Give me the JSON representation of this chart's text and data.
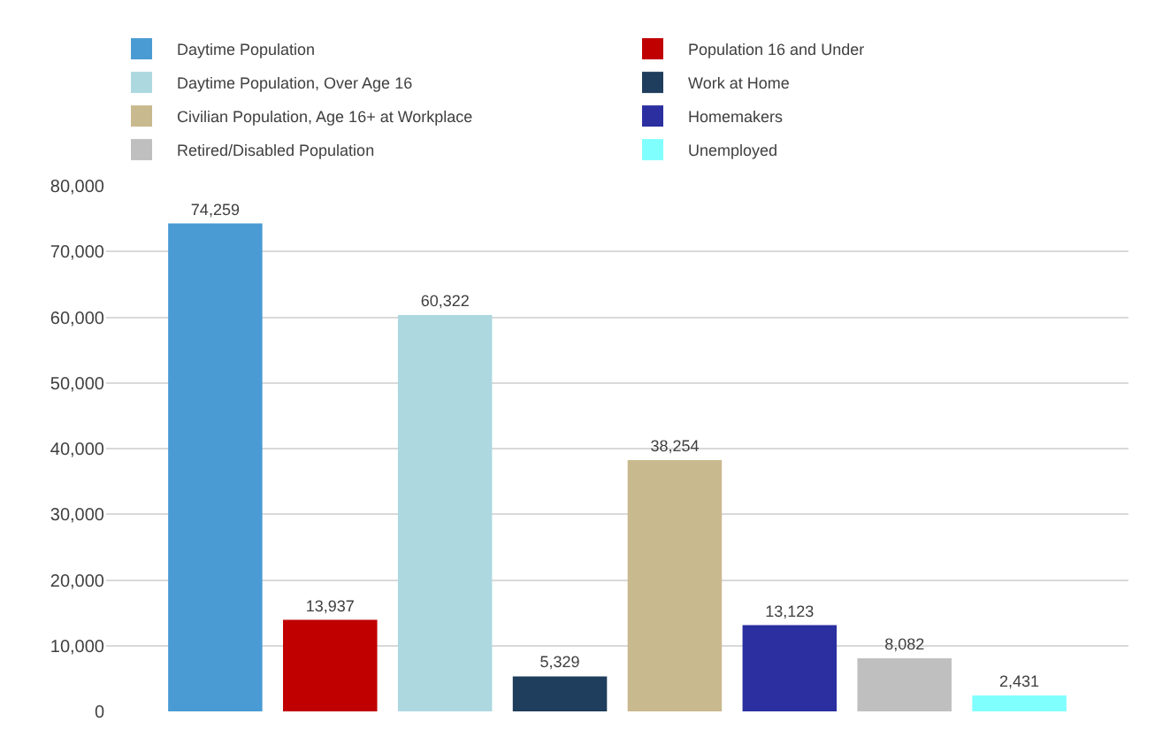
{
  "chart_data": {
    "type": "bar",
    "categories": [
      null,
      null,
      null,
      null,
      null,
      null,
      null,
      null
    ],
    "series": [
      {
        "name": "Daytime Population",
        "color": "#4a9bd4",
        "values": [
          74259,
          null,
          null,
          null,
          null,
          null,
          null,
          null
        ],
        "value_labels": [
          "74,259",
          null,
          null,
          null,
          null,
          null,
          null,
          null
        ]
      },
      {
        "name": "Population 16 and Under",
        "color": "#c00000",
        "values": [
          null,
          13937,
          null,
          null,
          null,
          null,
          null,
          null
        ],
        "value_labels": [
          null,
          "13,937",
          null,
          null,
          null,
          null,
          null,
          null
        ]
      },
      {
        "name": "Daytime Population, Over Age 16",
        "color": "#add8e0",
        "values": [
          null,
          null,
          60322,
          null,
          null,
          null,
          null,
          null
        ],
        "value_labels": [
          null,
          null,
          "60,322",
          null,
          null,
          null,
          null,
          null
        ]
      },
      {
        "name": "Work at Home",
        "color": "#1f3d5c",
        "values": [
          null,
          null,
          null,
          5329,
          null,
          null,
          null,
          null
        ],
        "value_labels": [
          null,
          null,
          null,
          "5,329",
          null,
          null,
          null,
          null
        ]
      },
      {
        "name": "Civilian Population, Age 16+ at Workplace",
        "color": "#c9b98f",
        "values": [
          null,
          null,
          null,
          null,
          38254,
          null,
          null,
          null
        ],
        "value_labels": [
          null,
          null,
          null,
          null,
          "38,254",
          null,
          null,
          null
        ]
      },
      {
        "name": "Homemakers",
        "color": "#2b2fa0",
        "values": [
          null,
          null,
          null,
          null,
          null,
          13123,
          null,
          null
        ],
        "value_labels": [
          null,
          null,
          null,
          null,
          null,
          "13,123",
          null,
          null
        ]
      },
      {
        "name": "Retired/Disabled Population",
        "color": "#bfbfbf",
        "values": [
          null,
          null,
          null,
          null,
          null,
          null,
          8082,
          null
        ],
        "value_labels": [
          null,
          null,
          null,
          null,
          null,
          null,
          "8,082",
          null
        ]
      },
      {
        "name": "Unemployed",
        "color": "#80ffff",
        "values": [
          null,
          null,
          null,
          null,
          null,
          null,
          null,
          2431
        ],
        "value_labels": [
          null,
          null,
          null,
          null,
          null,
          null,
          null,
          "2,431"
        ]
      }
    ],
    "ylim": [
      0,
      80000
    ],
    "yticks": [
      {
        "value": 0,
        "label": "0"
      },
      {
        "value": 10000,
        "label": "10,000"
      },
      {
        "value": 20000,
        "label": "20,000"
      },
      {
        "value": 30000,
        "label": "30,000"
      },
      {
        "value": 40000,
        "label": "40,000"
      },
      {
        "value": 50000,
        "label": "50,000"
      },
      {
        "value": 60000,
        "label": "60,000"
      },
      {
        "value": 70000,
        "label": "70,000"
      },
      {
        "value": 80000,
        "label": "80,000"
      }
    ],
    "grid": "y",
    "legend": "top"
  }
}
